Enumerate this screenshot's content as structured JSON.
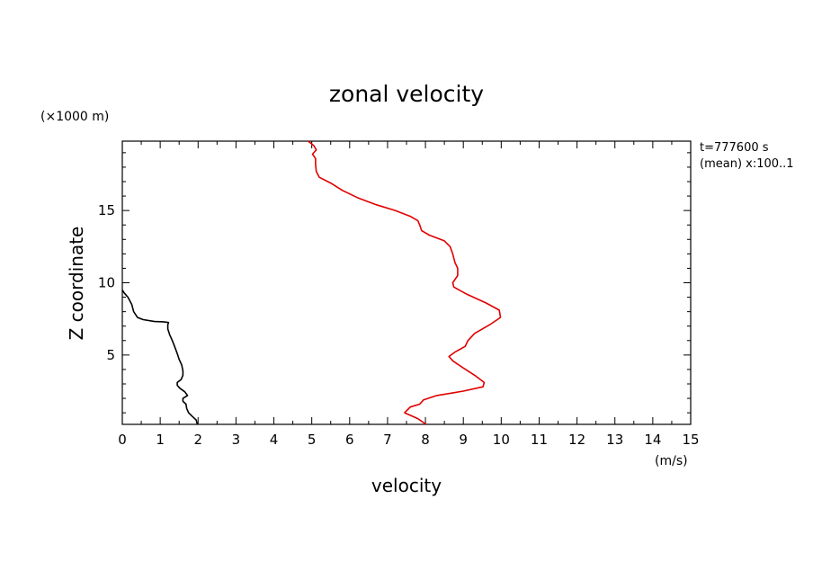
{
  "chart_data": {
    "type": "line",
    "title": "zonal velocity",
    "xlabel": "velocity",
    "ylabel": "Z coordinate",
    "x_unit": "(m/s)",
    "y_unit": "(×1000 m)",
    "xlim": [
      0,
      15
    ],
    "ylim": [
      0.2,
      19.8
    ],
    "x_ticks": [
      "0",
      "1",
      "2",
      "3",
      "4",
      "5",
      "6",
      "7",
      "8",
      "9",
      "10",
      "11",
      "12",
      "13",
      "14",
      "15"
    ],
    "y_ticks": [
      {
        "value": 5,
        "label": "5"
      },
      {
        "value": 10,
        "label": "10"
      },
      {
        "value": 15,
        "label": "15"
      }
    ],
    "annotations": [
      "t=777600 s",
      "(mean) x:100..1"
    ],
    "grid": false,
    "series": [
      {
        "name": "black profile",
        "color": "#000000",
        "points": [
          [
            1.98,
            0.2
          ],
          [
            1.95,
            0.5
          ],
          [
            1.85,
            0.75
          ],
          [
            1.75,
            1.0
          ],
          [
            1.7,
            1.3
          ],
          [
            1.68,
            1.6
          ],
          [
            1.6,
            1.8
          ],
          [
            1.6,
            2.0
          ],
          [
            1.72,
            2.2
          ],
          [
            1.65,
            2.45
          ],
          [
            1.52,
            2.7
          ],
          [
            1.45,
            2.9
          ],
          [
            1.45,
            3.1
          ],
          [
            1.55,
            3.3
          ],
          [
            1.6,
            3.6
          ],
          [
            1.6,
            3.9
          ],
          [
            1.57,
            4.3
          ],
          [
            1.5,
            4.7
          ],
          [
            1.45,
            5.1
          ],
          [
            1.38,
            5.6
          ],
          [
            1.32,
            6.0
          ],
          [
            1.25,
            6.4
          ],
          [
            1.2,
            6.8
          ],
          [
            1.2,
            7.1
          ],
          [
            1.22,
            7.25
          ],
          [
            1.08,
            7.3
          ],
          [
            0.85,
            7.32
          ],
          [
            0.55,
            7.45
          ],
          [
            0.4,
            7.6
          ],
          [
            0.3,
            8.0
          ],
          [
            0.25,
            8.5
          ],
          [
            0.15,
            9.0
          ],
          [
            0.05,
            9.3
          ],
          [
            0.0,
            9.5
          ]
        ]
      },
      {
        "name": "red profile",
        "color": "#e00000",
        "points": [
          [
            8.02,
            0.2
          ],
          [
            7.8,
            0.6
          ],
          [
            7.45,
            1.0
          ],
          [
            7.6,
            1.4
          ],
          [
            7.85,
            1.6
          ],
          [
            7.95,
            1.9
          ],
          [
            8.3,
            2.2
          ],
          [
            9.0,
            2.5
          ],
          [
            9.52,
            2.8
          ],
          [
            9.55,
            3.1
          ],
          [
            9.3,
            3.6
          ],
          [
            9.0,
            4.1
          ],
          [
            8.72,
            4.6
          ],
          [
            8.62,
            4.9
          ],
          [
            8.78,
            5.2
          ],
          [
            9.05,
            5.6
          ],
          [
            9.12,
            6.0
          ],
          [
            9.3,
            6.5
          ],
          [
            9.7,
            7.1
          ],
          [
            9.98,
            7.6
          ],
          [
            9.95,
            8.1
          ],
          [
            9.6,
            8.6
          ],
          [
            9.1,
            9.2
          ],
          [
            8.75,
            9.7
          ],
          [
            8.72,
            10.0
          ],
          [
            8.85,
            10.5
          ],
          [
            8.85,
            11.0
          ],
          [
            8.78,
            11.4
          ],
          [
            8.72,
            12.0
          ],
          [
            8.65,
            12.5
          ],
          [
            8.5,
            12.9
          ],
          [
            8.1,
            13.3
          ],
          [
            7.9,
            13.6
          ],
          [
            7.85,
            14.0
          ],
          [
            7.8,
            14.3
          ],
          [
            7.6,
            14.6
          ],
          [
            7.2,
            15.0
          ],
          [
            6.7,
            15.4
          ],
          [
            6.2,
            15.9
          ],
          [
            5.8,
            16.4
          ],
          [
            5.5,
            16.9
          ],
          [
            5.2,
            17.3
          ],
          [
            5.12,
            17.7
          ],
          [
            5.1,
            18.2
          ],
          [
            5.1,
            18.6
          ],
          [
            5.02,
            18.9
          ],
          [
            5.12,
            19.2
          ],
          [
            5.05,
            19.5
          ],
          [
            4.9,
            19.8
          ]
        ]
      }
    ]
  }
}
